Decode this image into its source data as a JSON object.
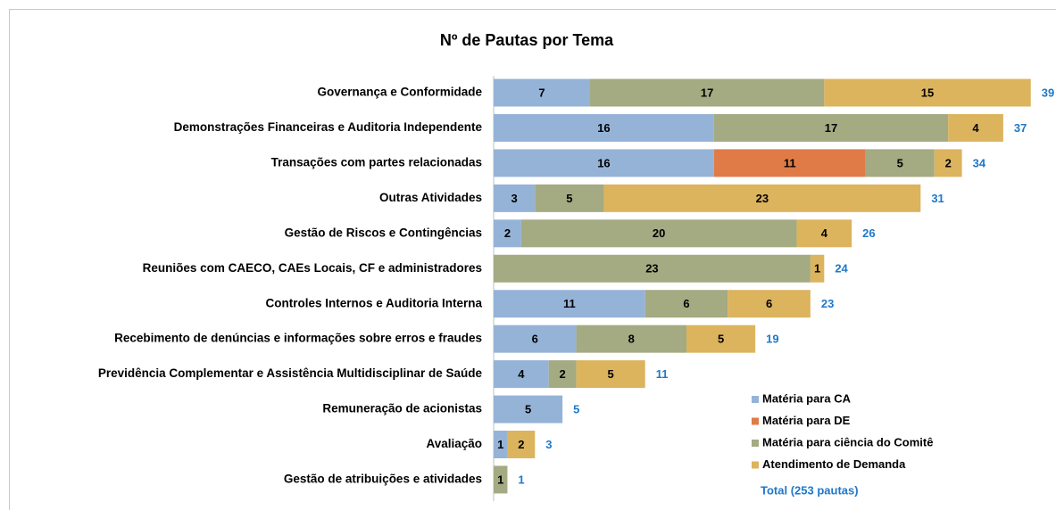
{
  "chart_data": {
    "type": "stacked-barh",
    "title": "Nº de Pautas por Tema",
    "categories": [
      "Governança e Conformidade",
      "Demonstrações Financeiras e Auditoria Independente",
      "Transações com partes relacionadas",
      "Outras Atividades",
      "Gestão de Riscos e Contingências",
      "Reuniões com CAECO, CAEs Locais, CF e administradores",
      "Controles Internos e Auditoria Interna",
      "Recebimento de denúncias e informações sobre erros e fraudes",
      "Previdência Complementar e Assistência Multidisciplinar de Saúde",
      "Remuneração de acionistas",
      "Avaliação",
      "Gestão de atribuições e atividades"
    ],
    "series": [
      {
        "name": "Matéria para CA",
        "color": "#95b3d7",
        "values": [
          7,
          16,
          16,
          3,
          2,
          null,
          11,
          6,
          4,
          5,
          1,
          null
        ]
      },
      {
        "name": "Matéria para DE",
        "color": "#e07b48",
        "values": [
          null,
          null,
          11,
          null,
          null,
          null,
          null,
          null,
          null,
          null,
          null,
          null
        ]
      },
      {
        "name": "Matéria para ciência do Comitê",
        "color": "#a4aa82",
        "values": [
          17,
          17,
          5,
          5,
          20,
          23,
          6,
          8,
          2,
          null,
          null,
          1
        ]
      },
      {
        "name": "Atendimento de Demanda",
        "color": "#dcb45e",
        "values": [
          15,
          4,
          2,
          23,
          4,
          1,
          6,
          5,
          5,
          null,
          2,
          null
        ]
      }
    ],
    "totals": [
      39,
      37,
      34,
      31,
      26,
      24,
      23,
      19,
      11,
      5,
      3,
      1
    ],
    "total_label": "Total (253 pautas)",
    "total_color": "#1f78c8",
    "xlim": [
      0,
      40
    ]
  }
}
